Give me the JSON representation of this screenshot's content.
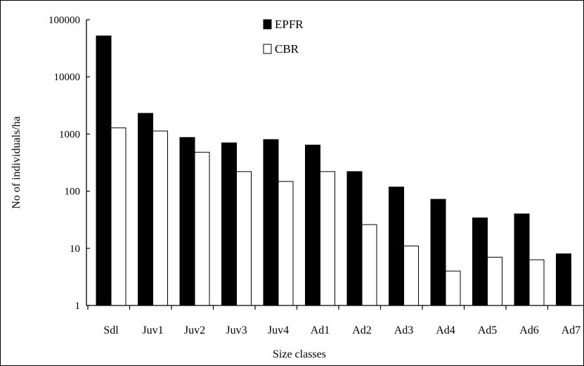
{
  "chart_data": {
    "type": "bar",
    "title": "",
    "xlabel": "Size classes",
    "ylabel": "No of individuals/ha",
    "y_scale": "log",
    "ylim": [
      1,
      100000
    ],
    "y_ticks": [
      "1",
      "10",
      "100",
      "1000",
      "10000",
      "100000"
    ],
    "categories": [
      "Sdl",
      "Juv1",
      "Juv2",
      "Juv3",
      "Juv4",
      "Ad1",
      "Ad2",
      "Ad3",
      "Ad4",
      "Ad5",
      "Ad6",
      "Ad7"
    ],
    "series": [
      {
        "name": "EPFR",
        "color": "#000000",
        "fill": "solid",
        "values": [
          52000,
          2300,
          870,
          700,
          800,
          640,
          220,
          118,
          72,
          34,
          40,
          8
        ]
      },
      {
        "name": "CBR",
        "color": "#ffffff",
        "fill": "hollow",
        "values": [
          1280,
          1130,
          480,
          220,
          148,
          220,
          26,
          11,
          4,
          7,
          6.3,
          null
        ]
      }
    ],
    "legend_position": "top-center",
    "grid": false
  }
}
